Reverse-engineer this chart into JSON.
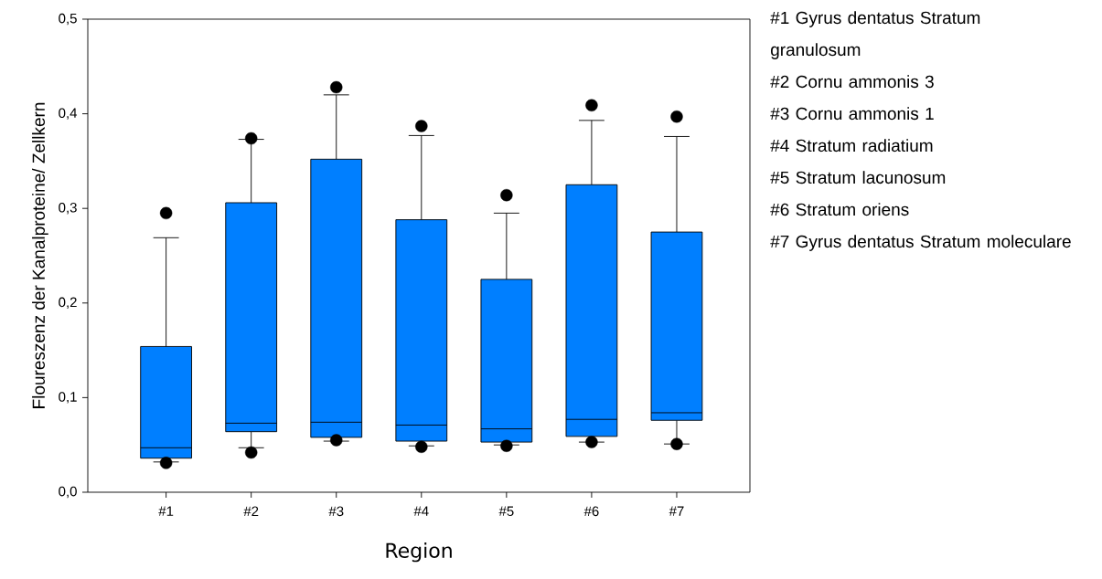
{
  "chart_data": {
    "type": "box",
    "xlabel": "Region",
    "ylabel": "Floureszenz der Kanalproteine/ Zellkern",
    "categories": [
      "#1",
      "#2",
      "#3",
      "#4",
      "#5",
      "#6",
      "#7"
    ],
    "color": "#007fff",
    "boxes": [
      {
        "low": 0.032,
        "q1": 0.036,
        "median": 0.047,
        "q3": 0.154,
        "high": 0.269,
        "outliers": [
          0.295,
          0.031
        ]
      },
      {
        "low": 0.047,
        "q1": 0.064,
        "median": 0.073,
        "q3": 0.306,
        "high": 0.373,
        "outliers": [
          0.374,
          0.042
        ]
      },
      {
        "low": 0.054,
        "q1": 0.058,
        "median": 0.074,
        "q3": 0.352,
        "high": 0.42,
        "outliers": [
          0.428,
          0.055
        ]
      },
      {
        "low": 0.049,
        "q1": 0.054,
        "median": 0.071,
        "q3": 0.288,
        "high": 0.377,
        "outliers": [
          0.387,
          0.048
        ]
      },
      {
        "low": 0.05,
        "q1": 0.053,
        "median": 0.067,
        "q3": 0.225,
        "high": 0.295,
        "outliers": [
          0.314,
          0.049
        ]
      },
      {
        "low": 0.053,
        "q1": 0.059,
        "median": 0.077,
        "q3": 0.325,
        "high": 0.393,
        "outliers": [
          0.409,
          0.053
        ]
      },
      {
        "low": 0.051,
        "q1": 0.076,
        "median": 0.084,
        "q3": 0.275,
        "high": 0.376,
        "outliers": [
          0.397,
          0.051
        ]
      }
    ],
    "ylim": [
      0,
      0.5
    ],
    "yticks": [
      {
        "value": 0,
        "label": "0,0"
      },
      {
        "value": 0.1,
        "label": "0,1"
      },
      {
        "value": 0.2,
        "label": "0,2"
      },
      {
        "value": 0.3,
        "label": "0,3"
      },
      {
        "value": 0.4,
        "label": "0,4"
      },
      {
        "value": 0.5,
        "label": "0,5"
      }
    ],
    "annotations": [
      "#1 Gyrus dentatus Stratum granulosum",
      "#2 Cornu ammonis 3",
      "#3 Cornu ammonis 1",
      "#4 Stratum radiatium",
      "#5 Stratum lacunosum",
      "#6 Stratum oriens",
      "#7 Gyrus dentatus Stratum moleculare"
    ]
  }
}
